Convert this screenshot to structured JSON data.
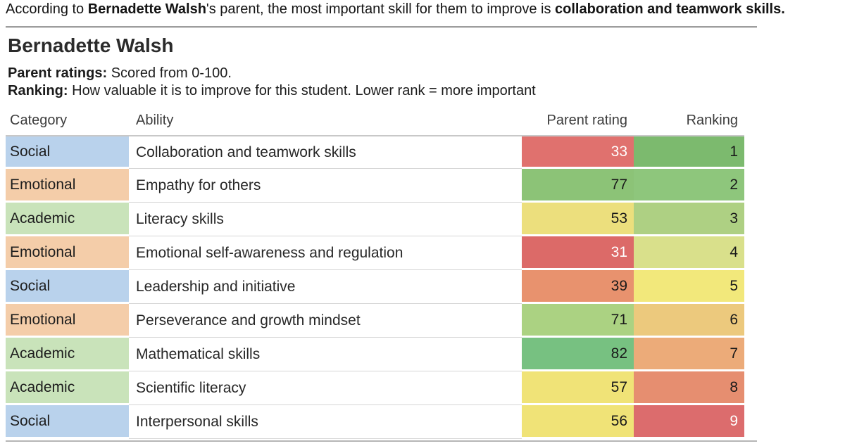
{
  "note": {
    "prefix": "According to ",
    "student_bold": "Bernadette Walsh",
    "middle": "'s parent, the most important skill for them to improve is ",
    "skill_bold": "collaboration and teamwork skills",
    "suffix": "."
  },
  "header": {
    "title": "Bernadette Walsh",
    "legend_1_label": "Parent ratings:",
    "legend_1_text": " Scored from 0-100.",
    "legend_2_label": "Ranking:",
    "legend_2_text": " How valuable it is to improve for this student. Lower rank = more important"
  },
  "colors": {
    "category_colors": {
      "Social": "#b9d2ec",
      "Emotional": "#f4cda9",
      "Academic": "#c9e3ba"
    },
    "divider": "#9d9d9d",
    "bottom_line": "#b5b5b5"
  },
  "chart_data": {
    "type": "table",
    "title": "Bernadette Walsh",
    "columns": [
      "Category",
      "Ability",
      "Parent rating",
      "Ranking"
    ],
    "rating_scale": "0-100",
    "rows": [
      {
        "category": "Social",
        "ability": "Collaboration and teamwork skills",
        "parent_rating": 33,
        "ranking": 1,
        "rating_bg": "#e0716e",
        "rating_text": "#ffffff",
        "ranking_bg": "#7cba6e",
        "ranking_text": "#1a1a1a"
      },
      {
        "category": "Emotional",
        "ability": "Empathy for others",
        "parent_rating": 77,
        "ranking": 2,
        "rating_bg": "#8cc377",
        "rating_text": "#1a1a1a",
        "ranking_bg": "#8ec67c",
        "ranking_text": "#1a1a1a"
      },
      {
        "category": "Academic",
        "ability": "Literacy skills",
        "parent_rating": 53,
        "ranking": 3,
        "rating_bg": "#ecdf7d",
        "rating_text": "#1a1a1a",
        "ranking_bg": "#aed083",
        "ranking_text": "#1a1a1a"
      },
      {
        "category": "Emotional",
        "ability": "Emotional self-awareness and regulation",
        "parent_rating": 31,
        "ranking": 4,
        "rating_bg": "#dc6a68",
        "rating_text": "#ffffff",
        "ranking_bg": "#d9e08b",
        "ranking_text": "#1a1a1a"
      },
      {
        "category": "Social",
        "ability": "Leadership and initiative",
        "parent_rating": 39,
        "ranking": 5,
        "rating_bg": "#e8926e",
        "rating_text": "#1a1a1a",
        "ranking_bg": "#f2e87b",
        "ranking_text": "#1a1a1a"
      },
      {
        "category": "Emotional",
        "ability": "Perseverance and growth mindset",
        "parent_rating": 71,
        "ranking": 6,
        "rating_bg": "#abd282",
        "rating_text": "#1a1a1a",
        "ranking_bg": "#ecc97d",
        "ranking_text": "#1a1a1a"
      },
      {
        "category": "Academic",
        "ability": "Mathematical skills",
        "parent_rating": 82,
        "ranking": 7,
        "rating_bg": "#77c181",
        "rating_text": "#1a1a1a",
        "ranking_bg": "#ecab79",
        "ranking_text": "#1a1a1a"
      },
      {
        "category": "Academic",
        "ability": "Scientific literacy",
        "parent_rating": 57,
        "ranking": 8,
        "rating_bg": "#f0e377",
        "rating_text": "#1a1a1a",
        "ranking_bg": "#e68e70",
        "ranking_text": "#1a1a1a"
      },
      {
        "category": "Social",
        "ability": "Interpersonal skills",
        "parent_rating": 56,
        "ranking": 9,
        "rating_bg": "#f0e377",
        "rating_text": "#1a1a1a",
        "ranking_bg": "#dc6c6d",
        "ranking_text": "#ffffff"
      }
    ]
  }
}
